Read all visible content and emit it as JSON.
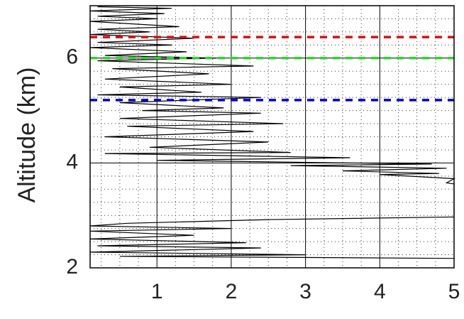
{
  "chart_data": {
    "type": "line",
    "ylabel": "Altitude (km)",
    "xlim": [
      0.1,
      5
    ],
    "ylim": [
      2,
      7
    ],
    "xticks": [
      1,
      2,
      3,
      4,
      5
    ],
    "yticks": [
      2,
      4,
      6
    ],
    "xminorticks": [
      0.25,
      0.5,
      0.75,
      1.25,
      1.5,
      1.75,
      2.25,
      2.5,
      2.75,
      3.25,
      3.5,
      3.75,
      4.25,
      4.5,
      4.75
    ],
    "yminorticks": [
      2.25,
      2.5,
      2.75,
      3,
      3.25,
      3.5,
      3.75,
      4.25,
      4.5,
      4.75,
      5,
      5.25,
      5.5,
      5.75,
      6.25,
      6.5,
      6.75
    ],
    "grid": true,
    "series": [
      {
        "color": "#000000",
        "x": [
          0.2,
          1.2,
          0.1,
          1.1,
          0.2,
          1.0,
          0.1,
          1.3,
          0.2,
          0.9,
          0.1,
          1.5,
          0.2,
          1.2,
          0.1,
          1.4,
          0.3,
          1.8,
          0.2,
          2.3,
          0.4,
          1.7,
          0.3,
          2.0,
          0.5,
          1.6,
          0.2,
          2.4,
          0.5,
          1.9,
          0.8,
          2.4,
          0.5,
          2.7,
          0.6,
          2.3,
          0.3,
          2.5,
          0.9,
          2.8,
          0.3,
          3.6,
          1.0,
          4.7,
          2.8,
          4.9,
          3.5,
          4.8,
          4.0,
          5.0,
          4.9,
          5.0,
          5.0,
          2.5,
          0.6,
          0.1,
          2.0,
          0.1,
          1.5,
          0.1,
          2.2,
          0.2,
          2.4,
          0.1,
          3.0,
          0.5,
          5.0
        ],
        "values": [
          6.98,
          6.95,
          6.9,
          6.85,
          6.8,
          6.75,
          6.7,
          6.6,
          6.55,
          6.5,
          6.45,
          6.38,
          6.3,
          6.25,
          6.2,
          6.12,
          6.05,
          6.0,
          5.95,
          5.85,
          5.8,
          5.7,
          5.6,
          5.5,
          5.45,
          5.35,
          5.3,
          5.25,
          5.15,
          5.05,
          5.0,
          4.95,
          4.85,
          4.75,
          4.7,
          4.6,
          4.5,
          4.4,
          4.3,
          4.2,
          4.18,
          4.1,
          4.05,
          3.98,
          3.95,
          3.9,
          3.85,
          3.8,
          3.78,
          3.7,
          3.62,
          3.6,
          2.97,
          2.92,
          2.85,
          2.8,
          2.75,
          2.7,
          2.62,
          2.55,
          2.48,
          2.42,
          2.38,
          2.3,
          2.25,
          2.22,
          2.18
        ]
      }
    ],
    "hlines": [
      {
        "value": 6.4,
        "color": "#ee0000"
      },
      {
        "value": 6.0,
        "color": "#22dd22"
      },
      {
        "value": 5.2,
        "color": "#0000ee"
      }
    ]
  }
}
